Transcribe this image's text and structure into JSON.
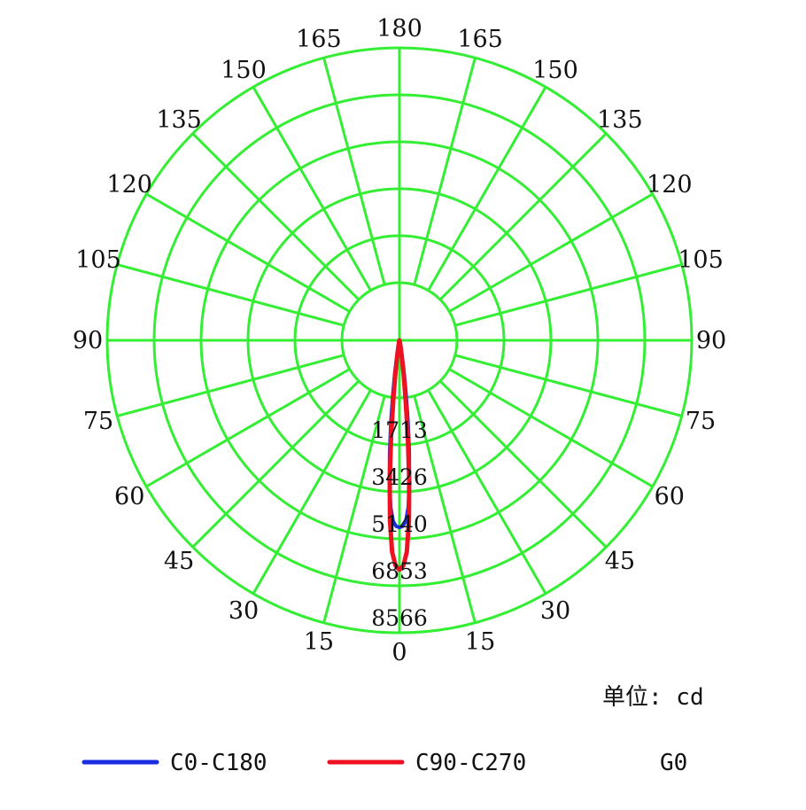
{
  "chart_data": {
    "type": "polar",
    "unit_label": "单位: cd",
    "angle_labels_left": [
      "180",
      "165",
      "150",
      "135",
      "120",
      "105",
      "90",
      "75",
      "60",
      "45",
      "30",
      "15",
      "0"
    ],
    "angle_labels_right": [
      "165",
      "150",
      "135",
      "120",
      "105",
      "90",
      "75",
      "60",
      "45",
      "30",
      "15"
    ],
    "radial_ticks": [
      1713,
      3426,
      5140,
      6853,
      8566
    ],
    "radial_max": 8566,
    "grid": true,
    "grid_color": "#33ee33",
    "series": [
      {
        "name": "C0-C180",
        "color": "#1a2ee0",
        "angles": [
          0,
          1,
          2,
          3,
          4,
          5,
          6,
          7,
          8,
          10,
          15,
          20
        ],
        "values": [
          5480,
          5450,
          5300,
          4900,
          4200,
          3300,
          2400,
          1600,
          1000,
          400,
          80,
          0
        ]
      },
      {
        "name": "C90-C270",
        "color": "#ee1122",
        "angles": [
          0,
          1,
          2,
          3,
          4,
          5,
          6,
          7,
          8,
          10,
          15,
          20
        ],
        "values": [
          6720,
          6600,
          6200,
          5300,
          4100,
          2800,
          1700,
          1000,
          550,
          200,
          40,
          0
        ]
      }
    ],
    "legend": [
      {
        "label": "C0-C180",
        "color": "#1a2ee0"
      },
      {
        "label": "C90-C270",
        "color": "#ee1122"
      },
      {
        "label": "G0",
        "color": ""
      }
    ],
    "legend_position": "bottom"
  }
}
